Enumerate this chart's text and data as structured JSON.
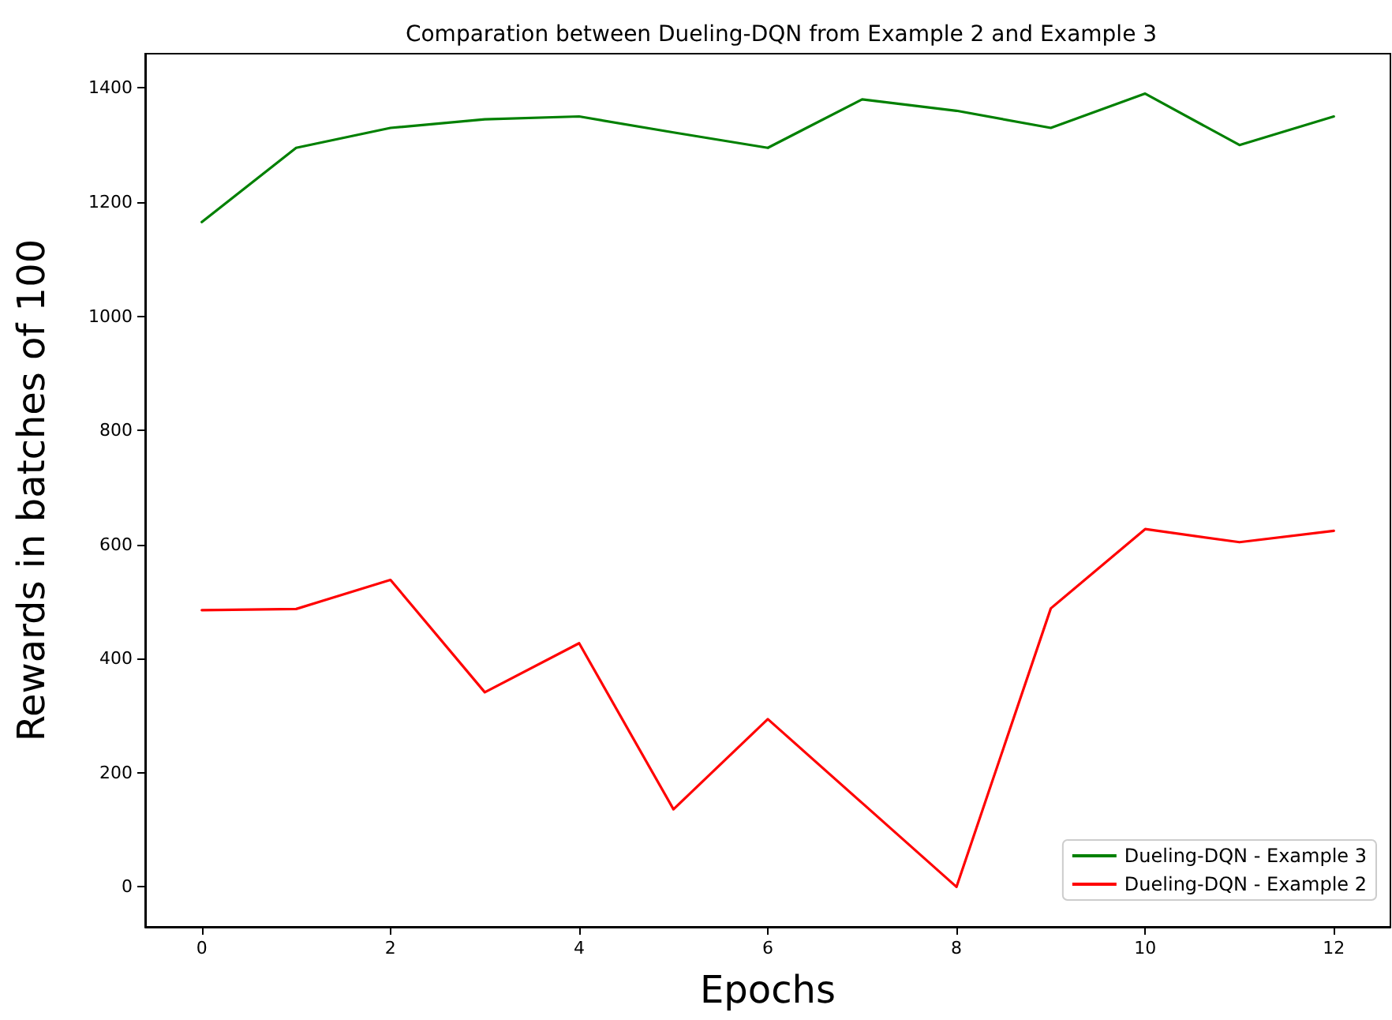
{
  "chart_data": {
    "type": "line",
    "title": "Comparation between Dueling-DQN from Example 2 and Example 3",
    "xlabel": "Epochs",
    "ylabel": "Rewards in batches of 100",
    "x": [
      0,
      1,
      2,
      3,
      4,
      5,
      6,
      7,
      8,
      9,
      10,
      11,
      12
    ],
    "series": [
      {
        "name": "Dueling-DQN - Example 3",
        "color": "#008000",
        "values": [
          1165,
          1295,
          1330,
          1345,
          1350,
          1322,
          1295,
          1380,
          1360,
          1330,
          1390,
          1300,
          1350
        ]
      },
      {
        "name": "Dueling-DQN - Example 2",
        "color": "#ff0000",
        "values": [
          485,
          487,
          538,
          341,
          427,
          136,
          294,
          147,
          0,
          488,
          627,
          604,
          624
        ]
      }
    ],
    "xlim": [
      -0.6,
      12.6
    ],
    "xticks": [
      0,
      2,
      4,
      6,
      8,
      10,
      12
    ],
    "ylim": [
      -70,
      1460
    ],
    "yticks": [
      0,
      200,
      400,
      600,
      800,
      1000,
      1200,
      1400
    ],
    "legend": "bottom right",
    "marker": "none",
    "line_style": "solid"
  }
}
